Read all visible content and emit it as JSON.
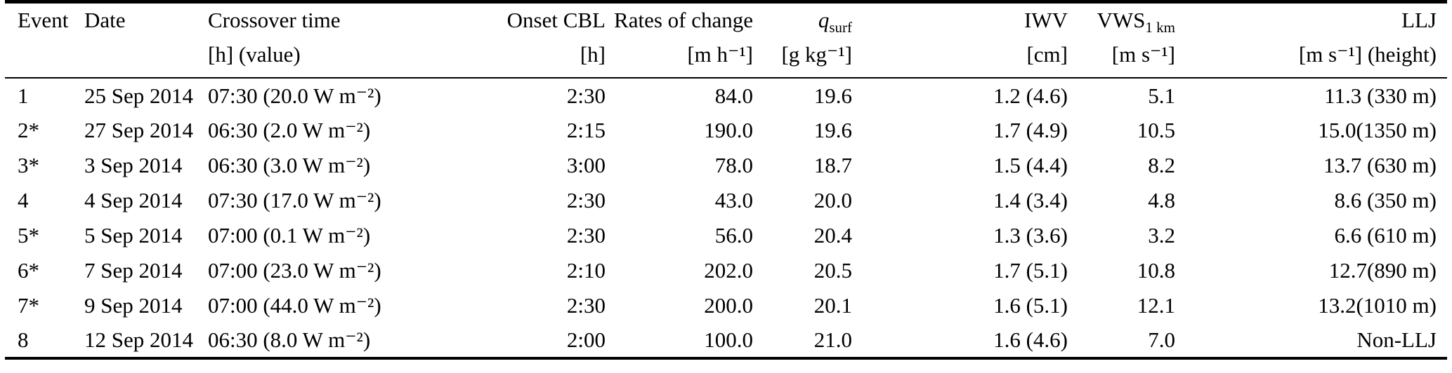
{
  "table": {
    "columns": [
      {
        "id": "event",
        "label": "Event",
        "unit": "",
        "align": "left"
      },
      {
        "id": "date",
        "label": "Date",
        "unit": "",
        "align": "left"
      },
      {
        "id": "crossover-time",
        "label": "Crossover time",
        "unit": "[h] (value)",
        "align": "left"
      },
      {
        "id": "onset-cbl",
        "label": "Onset CBL",
        "unit": "[h]",
        "align": "right"
      },
      {
        "id": "rates-of-change",
        "label": "Rates of change",
        "unit": "[m h⁻¹]",
        "align": "right"
      },
      {
        "id": "q-surf",
        "label": "q",
        "label_sub": "surf",
        "unit": "[g kg⁻¹]",
        "align": "right"
      },
      {
        "id": "iwv",
        "label": "IWV",
        "unit": "[cm]",
        "align": "right"
      },
      {
        "id": "vws-1km",
        "label": "VWS",
        "label_sub": "1 km",
        "unit": "[m s⁻¹]",
        "align": "right"
      },
      {
        "id": "llj",
        "label": "LLJ",
        "unit": "[m s⁻¹] (height)",
        "align": "right"
      }
    ],
    "rows": [
      [
        "1",
        "25 Sep 2014",
        "07:30 (20.0 W m⁻²)",
        "2:30",
        "84.0",
        "19.6",
        "1.2 (4.6)",
        "5.1",
        "11.3 (330 m)"
      ],
      [
        "2*",
        "27 Sep 2014",
        "06:30 (2.0 W m⁻²)",
        "2:15",
        "190.0",
        "19.6",
        "1.7 (4.9)",
        "10.5",
        "15.0(1350 m)"
      ],
      [
        "3*",
        "3 Sep 2014",
        "06:30 (3.0 W m⁻²)",
        "3:00",
        "78.0",
        "18.7",
        "1.5 (4.4)",
        "8.2",
        "13.7 (630 m)"
      ],
      [
        "4",
        "4 Sep 2014",
        "07:30 (17.0 W m⁻²)",
        "2:30",
        "43.0",
        "20.0",
        "1.4 (3.4)",
        "4.8",
        "8.6 (350 m)"
      ],
      [
        "5*",
        "5 Sep 2014",
        "07:00 (0.1 W m⁻²)",
        "2:30",
        "56.0",
        "20.4",
        "1.3 (3.6)",
        "3.2",
        "6.6 (610 m)"
      ],
      [
        "6*",
        "7 Sep 2014",
        "07:00 (23.0 W m⁻²)",
        "2:10",
        "202.0",
        "20.5",
        "1.7 (5.1)",
        "10.8",
        "12.7(890 m)"
      ],
      [
        "7*",
        "9 Sep 2014",
        "07:00 (44.0 W m⁻²)",
        "2:30",
        "200.0",
        "20.1",
        "1.6 (5.1)",
        "12.1",
        "13.2(1010 m)"
      ],
      [
        "8",
        "12 Sep 2014",
        "06:30 (8.0 W m⁻²)",
        "2:00",
        "100.0",
        "21.0",
        "1.6 (4.6)",
        "7.0",
        "Non-LLJ"
      ]
    ]
  },
  "colors": {
    "text": "#000000",
    "rule": "#000000",
    "background": "#ffffff"
  }
}
